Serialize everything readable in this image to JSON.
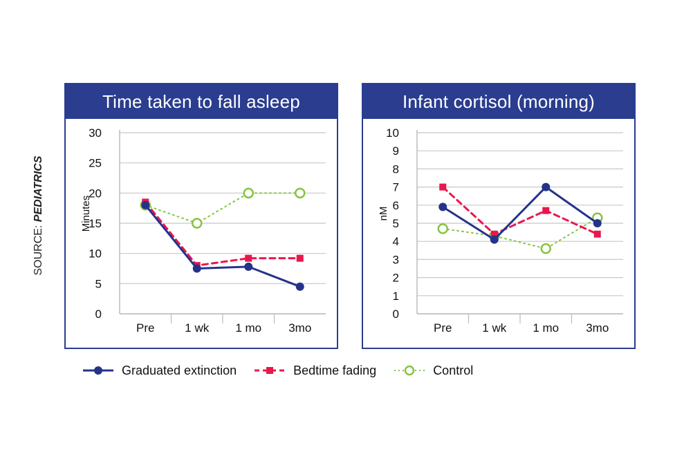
{
  "source_prefix": "SOURCE: ",
  "source_name": "PEDIATRICS",
  "colors": {
    "header_bg": "#2a3d8f",
    "grid": "#c8c8c8",
    "graduated_extinction": "#24338a",
    "bedtime_fading": "#e8174c",
    "control": "#86c440"
  },
  "legend": [
    {
      "name": "Graduated extinction",
      "color": "#24338a",
      "style": "solid",
      "marker": "filled-circle"
    },
    {
      "name": "Bedtime fading",
      "color": "#e8174c",
      "style": "dashed",
      "marker": "square"
    },
    {
      "name": "Control",
      "color": "#86c440",
      "style": "dotted",
      "marker": "open-circle"
    }
  ],
  "chart_data": [
    {
      "type": "line",
      "title": "Time taken to fall asleep",
      "ylabel": "Minutes",
      "xlabel": "",
      "categories": [
        "Pre",
        "1 wk",
        "1 mo",
        "3mo"
      ],
      "ylim": [
        0,
        30
      ],
      "yticks": [
        0,
        5,
        10,
        15,
        20,
        25,
        30
      ],
      "grid": true,
      "series": [
        {
          "name": "Graduated extinction",
          "values": [
            18,
            7.5,
            7.8,
            4.5
          ]
        },
        {
          "name": "Bedtime fading",
          "values": [
            18.5,
            8,
            9.2,
            9.2
          ]
        },
        {
          "name": "Control",
          "values": [
            18,
            15,
            20,
            20
          ]
        }
      ]
    },
    {
      "type": "line",
      "title": "Infant cortisol (morning)",
      "ylabel": "nM",
      "xlabel": "",
      "categories": [
        "Pre",
        "1 wk",
        "1 mo",
        "3mo"
      ],
      "ylim": [
        0,
        10
      ],
      "yticks": [
        0,
        1,
        2,
        3,
        4,
        5,
        6,
        7,
        8,
        9,
        10
      ],
      "grid": true,
      "series": [
        {
          "name": "Graduated extinction",
          "values": [
            5.9,
            4.1,
            7,
            5
          ]
        },
        {
          "name": "Bedtime fading",
          "values": [
            7,
            4.4,
            5.7,
            4.4
          ]
        },
        {
          "name": "Control",
          "values": [
            4.7,
            4.3,
            3.6,
            5.3
          ]
        }
      ]
    }
  ]
}
